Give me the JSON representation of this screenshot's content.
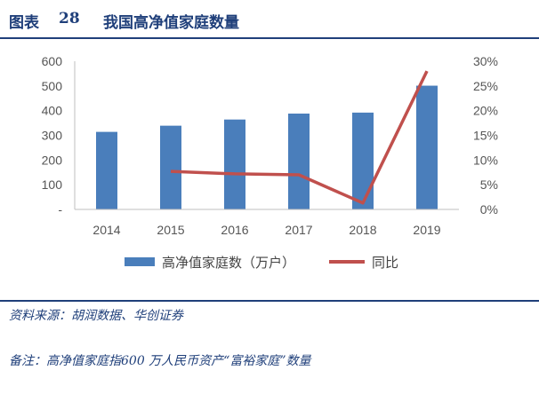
{
  "header": {
    "label": "图表",
    "number": "28",
    "title": "我国高净值家庭数量"
  },
  "chart_data": {
    "type": "bar",
    "categories": [
      "2014",
      "2015",
      "2016",
      "2017",
      "2018",
      "2019"
    ],
    "series": [
      {
        "name": "高净值家庭数（万户）",
        "type": "bar",
        "axis": "left",
        "values": [
          314,
          339,
          364,
          388,
          392,
          501
        ],
        "color": "#4a7ebb"
      },
      {
        "name": "同比",
        "type": "line",
        "axis": "right",
        "values": [
          null,
          0.077,
          0.072,
          0.07,
          0.013,
          0.28
        ],
        "color": "#c0504d"
      }
    ],
    "y_left": {
      "min": 0,
      "max": 600,
      "ticks": [
        0,
        100,
        200,
        300,
        400,
        500,
        600
      ],
      "tick_labels": [
        "-",
        "100",
        "200",
        "300",
        "400",
        "500",
        "600"
      ]
    },
    "y_right": {
      "min": 0,
      "max": 0.3,
      "ticks": [
        0,
        0.05,
        0.1,
        0.15,
        0.2,
        0.25,
        0.3
      ],
      "tick_labels": [
        "0%",
        "5%",
        "10%",
        "15%",
        "20%",
        "25%",
        "30%"
      ]
    },
    "grid": false,
    "legend_position": "bottom"
  },
  "footer": {
    "source": "资料来源：胡润数据、华创证券",
    "note": "备注：高净值家庭指600 万人民币资产“富裕家庭”数量"
  }
}
